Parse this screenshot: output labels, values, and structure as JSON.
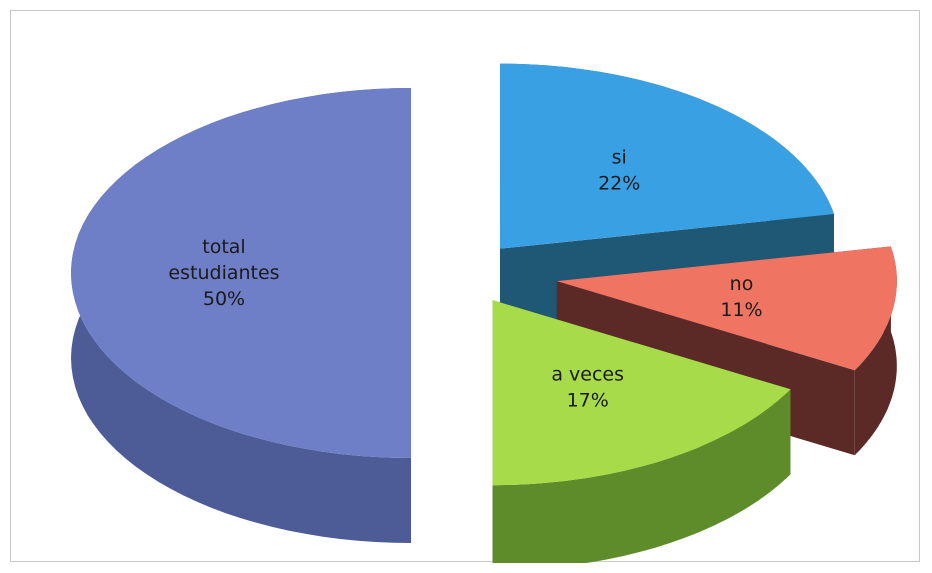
{
  "chart_data": {
    "type": "pie",
    "title": "",
    "three_d": true,
    "exploded": true,
    "slices": [
      {
        "label": "total estudiantes",
        "label_lines": [
          "total",
          "estudiantes"
        ],
        "value_label": "50%",
        "value": 50,
        "color": "#6e7fc7",
        "side_color": "#4d5c96"
      },
      {
        "label": "si",
        "label_lines": [
          "si"
        ],
        "value_label": "22%",
        "value": 22,
        "color": "#3aa0e4",
        "side_color": "#1e5875"
      },
      {
        "label": "no",
        "label_lines": [
          "no"
        ],
        "value_label": "11%",
        "value": 11,
        "color": "#ef7562",
        "side_color": "#5b2a26"
      },
      {
        "label": "a veces",
        "label_lines": [
          "a veces"
        ],
        "value_label": "17%",
        "value": 17,
        "color": "#a8db4a",
        "side_color": "#5f8c2a"
      }
    ]
  }
}
